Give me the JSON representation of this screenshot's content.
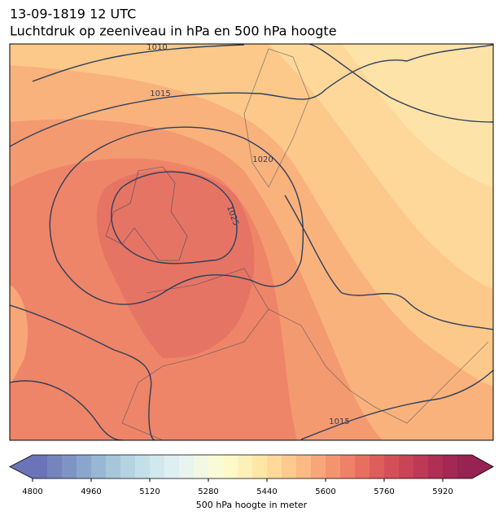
{
  "header": {
    "title": "13-09-1819 12 UTC",
    "subtitle": "Luchtdruk op zeeniveau in hPa en 500 hPa hoogte"
  },
  "map": {
    "isobar_labels": [
      "1010",
      "1015",
      "1020",
      "1025",
      "1015"
    ]
  },
  "colorbar": {
    "label": "500 hPa hoogte in meter",
    "lim": [
      4800,
      6000
    ],
    "ticks": [
      4800,
      4960,
      5120,
      5280,
      5440,
      5600,
      5760,
      5920
    ],
    "colors": [
      "#6b74b6",
      "#7584bd",
      "#7f94c4",
      "#8ba6cc",
      "#98b7d3",
      "#a6c6da",
      "#b4d4e2",
      "#c3dfea",
      "#d1e8ef",
      "#deeff3",
      "#e9f4ef",
      "#f2f8e4",
      "#f9fbd6",
      "#fdfac8",
      "#fef1b8",
      "#fee6a7",
      "#fed99a",
      "#fdca8e",
      "#fbb983",
      "#f8a679",
      "#f3946f",
      "#ee8168",
      "#e76f60",
      "#de5e5b",
      "#d45058",
      "#c94456",
      "#bd3955",
      "#b02f54",
      "#a32853",
      "#962352"
    ]
  }
}
